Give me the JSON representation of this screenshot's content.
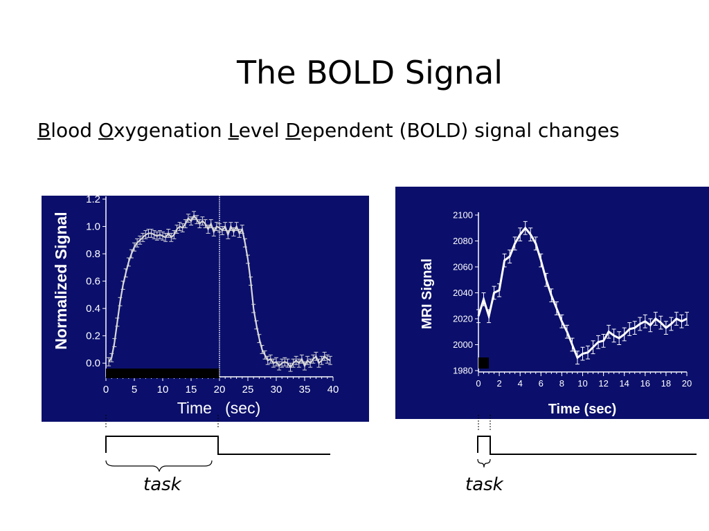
{
  "slide": {
    "title": "The BOLD Signal",
    "subtitle_parts": [
      {
        "u": "B",
        "rest": "lood "
      },
      {
        "u": "O",
        "rest": "xygenation "
      },
      {
        "u": "L",
        "rest": "evel "
      },
      {
        "u": "D",
        "rest": "ependent (BOLD)  signal changes"
      }
    ],
    "task_label_left": "task",
    "task_label_right": "task"
  },
  "colors": {
    "panel_bg": "#0b0f6b",
    "left_series": "#d8d8d8",
    "right_series": "#ffffff"
  },
  "chart_data": [
    {
      "type": "line",
      "title": "",
      "xlabel": "Time   (sec)",
      "ylabel": "Normalized Signal",
      "xlim": [
        0,
        40
      ],
      "ylim": [
        -0.1,
        1.2
      ],
      "x_ticks": [
        0,
        5,
        10,
        15,
        20,
        25,
        30,
        35,
        40
      ],
      "x_tick_labels": [
        "0",
        "5",
        "10",
        "15",
        "20",
        "25",
        "30",
        "35",
        "40"
      ],
      "y_ticks": [
        0.0,
        0.2,
        0.4,
        0.6,
        0.8,
        1.0,
        1.2
      ],
      "y_tick_labels": [
        "0.0",
        "0.2",
        "0.4",
        "0.6",
        "0.8",
        "1.0",
        "1.2"
      ],
      "task_block": [
        0,
        20
      ],
      "stimulus_offset": 20,
      "series": [
        {
          "x": [
            0.5,
            1,
            1.5,
            2,
            2.5,
            3,
            3.5,
            4,
            4.5,
            5,
            5.5,
            6,
            6.5,
            7,
            7.5,
            8,
            8.5,
            9,
            9.5,
            10,
            10.5,
            11,
            11.5,
            12,
            12.5,
            13,
            13.5,
            14,
            14.5,
            15,
            15.5,
            16,
            16.5,
            17,
            17.5,
            18,
            18.5,
            19,
            19.5,
            20,
            20.5,
            21,
            21.5,
            22,
            22.5,
            23,
            23.5,
            24,
            24.5,
            25,
            25.5,
            26,
            26.5,
            27,
            27.5,
            28,
            28.5,
            29,
            29.5,
            30,
            30.5,
            31,
            31.5,
            32,
            32.5,
            33,
            33.5,
            34,
            34.5,
            35,
            35.5,
            36,
            36.5,
            37,
            37.5,
            38,
            38.5,
            39,
            39.5
          ],
          "values": [
            0.01,
            0.04,
            0.15,
            0.3,
            0.45,
            0.57,
            0.66,
            0.74,
            0.8,
            0.85,
            0.88,
            0.9,
            0.92,
            0.94,
            0.95,
            0.95,
            0.94,
            0.93,
            0.94,
            0.93,
            0.92,
            0.95,
            0.92,
            0.94,
            0.98,
            1.0,
            0.99,
            1.02,
            1.06,
            1.04,
            1.08,
            1.05,
            1.02,
            1.04,
            1.02,
            0.98,
            1.02,
            0.96,
            1.0,
            0.99,
            0.97,
            1.0,
            0.94,
            1.0,
            0.96,
            1.0,
            0.95,
            0.98,
            0.88,
            0.76,
            0.6,
            0.4,
            0.28,
            0.18,
            0.1,
            0.06,
            0.02,
            0.03,
            0.0,
            0.01,
            -0.02,
            0.0,
            0.01,
            0.0,
            -0.03,
            0.0,
            0.02,
            0.0,
            0.03,
            -0.02,
            0.02,
            0.0,
            0.03,
            0.05,
            0.0,
            0.02,
            0.05,
            0.03,
            0.02
          ],
          "error": 0.03
        }
      ]
    },
    {
      "type": "line",
      "title": "",
      "xlabel": "Time (sec)",
      "ylabel": "MRI Signal",
      "xlim": [
        0,
        20
      ],
      "ylim": [
        1980,
        2100
      ],
      "x_ticks": [
        0,
        2,
        4,
        6,
        8,
        10,
        12,
        14,
        16,
        18,
        20
      ],
      "x_tick_labels": [
        "0",
        "2",
        "4",
        "6",
        "8",
        "10",
        "12",
        "14",
        "16",
        "18",
        "20"
      ],
      "y_ticks": [
        1980,
        2000,
        2020,
        2040,
        2060,
        2080,
        2100
      ],
      "y_tick_labels": [
        "1980",
        "2000",
        "2020",
        "2040",
        "2060",
        "2080",
        "2100"
      ],
      "task_block": [
        0,
        1
      ],
      "series": [
        {
          "x": [
            0,
            0.5,
            1,
            1.5,
            2,
            2.5,
            3,
            3.5,
            4,
            4.5,
            5,
            5.5,
            6,
            6.5,
            7,
            7.5,
            8,
            8.5,
            9,
            9.5,
            10,
            10.5,
            11,
            11.5,
            12,
            12.5,
            13,
            13.5,
            14,
            14.5,
            15,
            15.5,
            16,
            16.5,
            17,
            17.5,
            18,
            18.5,
            19,
            19.5,
            20
          ],
          "values": [
            2022,
            2035,
            2022,
            2040,
            2042,
            2065,
            2068,
            2078,
            2085,
            2090,
            2085,
            2078,
            2065,
            2050,
            2038,
            2028,
            2018,
            2010,
            2000,
            1990,
            1993,
            1994,
            1998,
            2002,
            2003,
            2010,
            2007,
            2005,
            2008,
            2012,
            2013,
            2016,
            2018,
            2015,
            2020,
            2017,
            2013,
            2016,
            2020,
            2018,
            2020
          ],
          "error": 5
        }
      ]
    }
  ]
}
